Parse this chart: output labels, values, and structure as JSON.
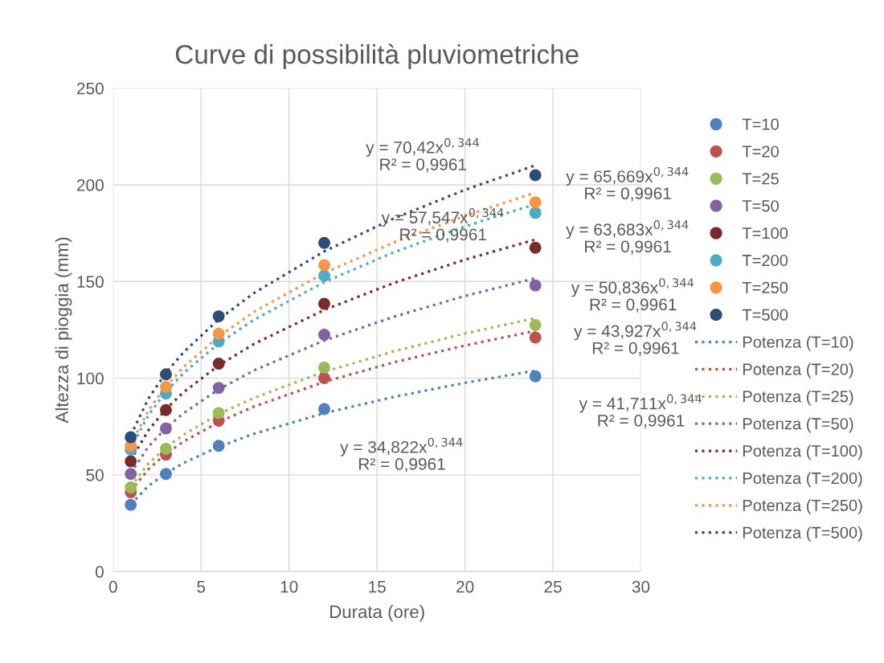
{
  "chart_data": {
    "type": "scatter",
    "title": "Curve di possibilità pluviometriche",
    "xlabel": "Durata (ore)",
    "ylabel": "Altezza di pioggia (mm)",
    "xlim": [
      0,
      30
    ],
    "xticks": [
      0,
      5,
      10,
      15,
      20,
      25,
      30
    ],
    "ylim": [
      0,
      250
    ],
    "yticks": [
      0,
      50,
      100,
      150,
      200,
      250
    ],
    "grid": true,
    "legend": "right",
    "x": [
      1,
      3,
      6,
      12,
      24
    ],
    "series": [
      {
        "name": "T=10",
        "marker": "circle",
        "color": "#4f81bd",
        "values": [
          34.5,
          50.5,
          65,
          84,
          101
        ]
      },
      {
        "name": "T=20",
        "marker": "circle",
        "color": "#c0504d",
        "values": [
          41,
          60.5,
          78,
          100,
          121
        ]
      },
      {
        "name": "T=25",
        "marker": "circle",
        "color": "#9bbb59",
        "values": [
          43.5,
          63.5,
          82,
          105.5,
          127.5
        ]
      },
      {
        "name": "T=50",
        "marker": "circle",
        "color": "#8064a2",
        "values": [
          50.5,
          74,
          95,
          122.5,
          148
        ]
      },
      {
        "name": "T=100",
        "marker": "circle",
        "color": "#772c2a",
        "values": [
          57,
          83.5,
          107.5,
          138.5,
          167.5
        ]
      },
      {
        "name": "T=200",
        "marker": "circle",
        "color": "#4bacc6",
        "values": [
          63,
          92,
          119,
          153,
          185.5
        ]
      },
      {
        "name": "T=250",
        "marker": "circle",
        "color": "#f79646",
        "values": [
          65,
          95.5,
          123,
          158.5,
          191
        ]
      },
      {
        "name": "T=500",
        "marker": "circle",
        "color": "#2c4d75",
        "values": [
          69.5,
          102,
          132,
          170,
          205
        ]
      },
      {
        "name": "Potenza (T=10)",
        "type": "line",
        "line_style": "dotted",
        "color": "#4f81bd",
        "x": [
          1,
          2,
          3,
          4,
          6,
          8,
          12,
          16,
          20,
          24
        ],
        "values": [
          34.8,
          44.2,
          50.8,
          56.1,
          64.5,
          71.2,
          81.9,
          90.4,
          97.6,
          103.9
        ]
      },
      {
        "name": "Potenza (T=20)",
        "type": "line",
        "line_style": "dotted",
        "color": "#c0504d",
        "x": [
          1,
          2,
          3,
          4,
          6,
          8,
          12,
          16,
          20,
          24
        ],
        "values": [
          41.7,
          52.9,
          60.9,
          67.2,
          77.3,
          85.3,
          98.1,
          108.3,
          116.9,
          124.5
        ]
      },
      {
        "name": "Potenza (T=25)",
        "type": "line",
        "line_style": "dotted",
        "color": "#9bbb59",
        "x": [
          1,
          2,
          3,
          4,
          6,
          8,
          12,
          16,
          20,
          24
        ],
        "values": [
          43.9,
          55.8,
          64.1,
          70.8,
          81.4,
          89.8,
          103.3,
          114.0,
          123.1,
          131.1
        ]
      },
      {
        "name": "Potenza (T=50)",
        "type": "line",
        "line_style": "dotted",
        "color": "#8064a2",
        "x": [
          1,
          2,
          3,
          4,
          6,
          8,
          12,
          16,
          20,
          24
        ],
        "values": [
          50.8,
          64.5,
          74.2,
          81.9,
          94.2,
          104.0,
          119.5,
          131.9,
          142.5,
          151.7
        ]
      },
      {
        "name": "Potenza (T=100)",
        "type": "line",
        "line_style": "dotted",
        "color": "#772c2a",
        "x": [
          1,
          2,
          3,
          4,
          6,
          8,
          12,
          16,
          20,
          24
        ],
        "values": [
          57.5,
          73.0,
          84.0,
          92.7,
          106.6,
          117.7,
          135.3,
          149.4,
          161.3,
          171.7
        ]
      },
      {
        "name": "Potenza (T=200)",
        "type": "line",
        "line_style": "dotted",
        "color": "#4bacc6",
        "x": [
          1,
          2,
          3,
          4,
          6,
          8,
          12,
          16,
          20,
          24
        ],
        "values": [
          63.7,
          80.8,
          92.9,
          102.6,
          118.0,
          130.2,
          149.7,
          165.3,
          178.5,
          190.0
        ]
      },
      {
        "name": "Potenza (T=250)",
        "type": "line",
        "line_style": "dotted",
        "color": "#f79646",
        "x": [
          1,
          2,
          3,
          4,
          6,
          8,
          12,
          16,
          20,
          24
        ],
        "values": [
          65.7,
          83.3,
          95.8,
          105.8,
          121.6,
          134.3,
          154.4,
          170.4,
          184.0,
          196.0
        ]
      },
      {
        "name": "Potenza (T=500)",
        "type": "line",
        "line_style": "dotted",
        "color": "#2c4d75",
        "x": [
          1,
          2,
          3,
          4,
          6,
          8,
          12,
          16,
          20,
          24
        ],
        "values": [
          70.4,
          89.4,
          102.8,
          113.4,
          130.4,
          144.0,
          165.6,
          182.8,
          197.4,
          210.1
        ]
      }
    ],
    "annotations": [
      "y = 70,42x$^{0,344}$\nR² = 0,9961",
      "y = 65,669x$^{0,344}$\nR² = 0,9961",
      "y = 57,547x$^{0,344}$\nR² = 0,9961",
      "y = 63,683x$^{0,344}$\nR² = 0,9961",
      "y = 50,836x$^{0,344}$\nR² = 0,9961",
      "y = 43,927x$^{0,344}$\nR² = 0,9961",
      "y = 41,711x$^{0,344}$\nR² = 0,9961",
      "y = 34,822x$^{0,344}$\nR² = 0,9961"
    ]
  }
}
